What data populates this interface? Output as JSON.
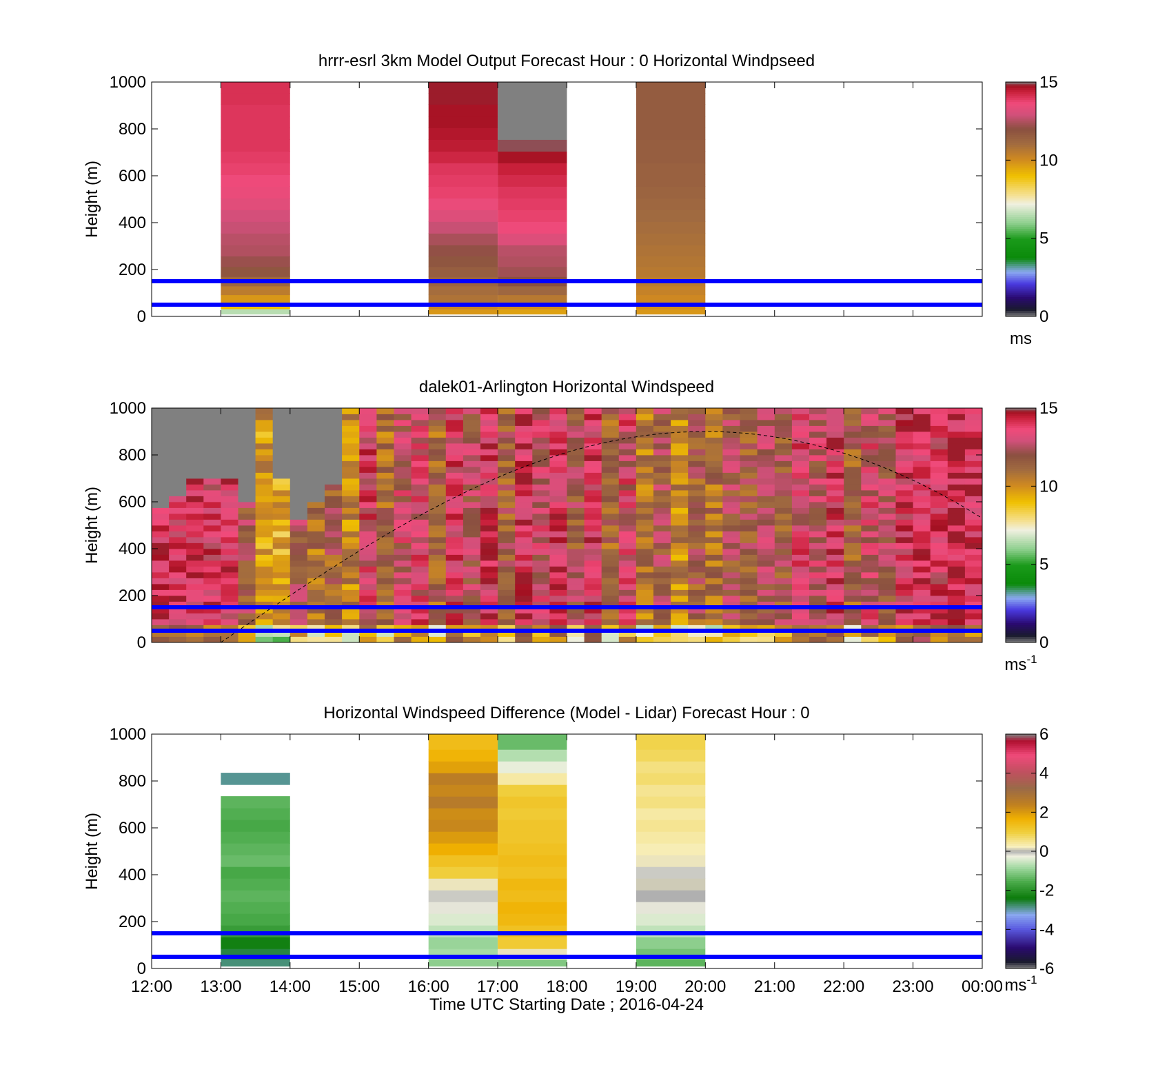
{
  "colors": {
    "line_blue": "#0000ff",
    "missing_gray": "#808080",
    "speed_cmap": [
      [
        0.0,
        "#808080"
      ],
      [
        0.03,
        "#1a1a2e"
      ],
      [
        0.08,
        "#2a0a70"
      ],
      [
        0.14,
        "#4a3ae0"
      ],
      [
        0.19,
        "#8aa8f0"
      ],
      [
        0.25,
        "#0a8a0a"
      ],
      [
        0.33,
        "#1a9a1a"
      ],
      [
        0.4,
        "#90d090"
      ],
      [
        0.48,
        "#f0f0e0"
      ],
      [
        0.52,
        "#f5e090"
      ],
      [
        0.6,
        "#f0c000"
      ],
      [
        0.67,
        "#d08a20"
      ],
      [
        0.74,
        "#a06a40"
      ],
      [
        0.8,
        "#8a5040"
      ],
      [
        0.86,
        "#d0507a"
      ],
      [
        0.91,
        "#f04a7a"
      ],
      [
        0.96,
        "#c8203a"
      ],
      [
        0.985,
        "#a01020"
      ],
      [
        1.0,
        "#808080"
      ]
    ],
    "diff_cmap": [
      [
        0.0,
        "#808080"
      ],
      [
        0.03,
        "#1a1a2e"
      ],
      [
        0.09,
        "#2a0a70"
      ],
      [
        0.17,
        "#5a5ae0"
      ],
      [
        0.23,
        "#8aa8f0"
      ],
      [
        0.3,
        "#0a7a0a"
      ],
      [
        0.37,
        "#4aaa4a"
      ],
      [
        0.43,
        "#a0d8a0"
      ],
      [
        0.48,
        "#f0f0e0"
      ],
      [
        0.5,
        "#b0b0b0"
      ],
      [
        0.52,
        "#f8f0c0"
      ],
      [
        0.58,
        "#f0d040"
      ],
      [
        0.64,
        "#f0b000"
      ],
      [
        0.7,
        "#c08020"
      ],
      [
        0.77,
        "#9a6a48"
      ],
      [
        0.84,
        "#c05060"
      ],
      [
        0.91,
        "#f04a7a"
      ],
      [
        0.97,
        "#b01030"
      ],
      [
        1.0,
        "#808080"
      ]
    ]
  },
  "chart_data": [
    {
      "type": "heatmap",
      "title": "hrrr-esrl 3km Model Output   Forecast Hour : 0 Horizontal Windpseed",
      "xlabel": "",
      "ylabel": "Height (m)",
      "ylim": [
        0,
        1000
      ],
      "yticks": [
        "0",
        "200",
        "400",
        "600",
        "800",
        "1000"
      ],
      "xlim": [
        12,
        24
      ],
      "colorbar": {
        "min": 0,
        "max": 15,
        "ticks": [
          "0",
          "5",
          "10",
          "15"
        ],
        "unit": "ms",
        "unit_sup": ""
      },
      "reference_lines_m": [
        150,
        50
      ],
      "data": {
        "hours": [
          13,
          16,
          17,
          19
        ],
        "heights_m": [
          20,
          45,
          75,
          110,
          150,
          190,
          235,
          280,
          330,
          380,
          430,
          480,
          530,
          580,
          630,
          680,
          730,
          780,
          830,
          880,
          930,
          975
        ],
        "values": [
          [
            6.5,
            9.0,
            9.8,
            10.5,
            11.2,
            11.8,
            12.2,
            12.5,
            12.6,
            12.8,
            13.0,
            13.3,
            13.5,
            13.6,
            13.8,
            13.9,
            14.0,
            14.0,
            14.0,
            14.0,
            14.1,
            14.1
          ],
          [
            9.8,
            10.2,
            10.8,
            11.0,
            11.3,
            11.5,
            11.8,
            12.1,
            12.4,
            12.8,
            13.2,
            13.5,
            13.8,
            13.9,
            14.0,
            14.3,
            14.5,
            14.6,
            14.7,
            14.7,
            14.8,
            14.8
          ],
          [
            9.6,
            10.0,
            10.6,
            11.2,
            12.0,
            12.3,
            12.5,
            12.6,
            13.2,
            13.6,
            13.8,
            13.9,
            14.0,
            14.2,
            14.4,
            14.7,
            14.9,
            15.0,
            15.0,
            15.0,
            15.0,
            15.0
          ],
          [
            9.8,
            10.0,
            10.1,
            10.3,
            10.5,
            10.6,
            10.7,
            10.8,
            10.9,
            11.0,
            11.1,
            11.2,
            11.3,
            11.4,
            11.4,
            11.5,
            11.5,
            11.6,
            11.6,
            11.6,
            11.6,
            11.6
          ]
        ]
      }
    },
    {
      "type": "heatmap",
      "title": "dalek01-Arlington  Horizontal Windspeed",
      "xlabel": "",
      "ylabel": "Height (m)",
      "ylim": [
        0,
        1000
      ],
      "yticks": [
        "0",
        "200",
        "400",
        "600",
        "800",
        "1000"
      ],
      "xlim": [
        12,
        24
      ],
      "colorbar": {
        "min": 0,
        "max": 15,
        "ticks": [
          "0",
          "5",
          "10",
          "15"
        ],
        "unit": "ms",
        "unit_sup": "-1"
      },
      "reference_lines_m": [
        150,
        50
      ],
      "curve": {
        "style": "dashed",
        "x_start": 13.0,
        "x_peak": 20.0,
        "peak_m": 900,
        "x_end": 24.0,
        "end_m": 530
      },
      "data": {
        "time_step_h": 0.25,
        "range_gate_m": 25,
        "profiles_1": [
          {
            "start": 12.0,
            "top_m": 560,
            "mean": 14.0
          },
          {
            "start": 12.25,
            "top_m": 620,
            "mean": 13.7
          },
          {
            "start": 12.5,
            "top_m": 700,
            "mean": 14.0
          },
          {
            "start": 12.75,
            "top_m": 700,
            "mean": 13.6
          },
          {
            "start": 13.0,
            "top_m": 690,
            "mean": 13.8
          },
          {
            "start": 13.25,
            "top_m": 580,
            "mean": 12.0
          },
          {
            "start": 13.5,
            "top_m": 1000,
            "mean": 9.8
          },
          {
            "start": 13.75,
            "top_m": 700,
            "mean": 9.4
          },
          {
            "start": 14.0,
            "top_m": 520,
            "mean": 12.2
          },
          {
            "start": 14.25,
            "top_m": 600,
            "mean": 10.8
          },
          {
            "start": 14.5,
            "top_m": 660,
            "mean": 11.5
          },
          {
            "start": 14.75,
            "top_m": 1000,
            "mean": 10.3
          },
          {
            "start": 15.0,
            "top_m": 1000,
            "mean": 13.5
          },
          {
            "start": 15.25,
            "top_m": 1000,
            "mean": 11.0
          },
          {
            "start": 15.5,
            "top_m": 1000,
            "mean": 12.8
          },
          {
            "start": 15.75,
            "top_m": 1000,
            "mean": 13.3
          }
        ],
        "profiles_2": [
          {
            "start": 16.0,
            "top_m": 1000,
            "mean": 11.2
          },
          {
            "start": 16.25,
            "top_m": 1000,
            "mean": 13.4
          },
          {
            "start": 16.5,
            "top_m": 1000,
            "mean": 12.3
          },
          {
            "start": 16.75,
            "top_m": 1000,
            "mean": 13.9
          },
          {
            "start": 17.0,
            "top_m": 1000,
            "mean": 11.6
          },
          {
            "start": 17.25,
            "top_m": 1000,
            "mean": 14.3
          },
          {
            "start": 17.5,
            "top_m": 1000,
            "mean": 12.8
          },
          {
            "start": 17.75,
            "top_m": 1000,
            "mean": 14.0
          },
          {
            "start": 18.0,
            "top_m": 1000,
            "mean": 11.8
          },
          {
            "start": 18.25,
            "top_m": 1000,
            "mean": 13.8
          },
          {
            "start": 18.5,
            "top_m": 1000,
            "mean": 11.2
          },
          {
            "start": 18.75,
            "top_m": 1000,
            "mean": 13.2
          },
          {
            "start": 19.0,
            "top_m": 1000,
            "mean": 10.6
          },
          {
            "start": 19.25,
            "top_m": 1000,
            "mean": 12.0
          },
          {
            "start": 19.5,
            "top_m": 1000,
            "mean": 10.3
          },
          {
            "start": 19.75,
            "top_m": 1000,
            "mean": 11.6
          }
        ],
        "profiles_3": [
          {
            "start": 20.0,
            "top_m": 1000,
            "mean": 11.0
          },
          {
            "start": 20.25,
            "top_m": 1000,
            "mean": 12.0
          },
          {
            "start": 20.5,
            "top_m": 1000,
            "mean": 11.6
          },
          {
            "start": 20.75,
            "top_m": 1000,
            "mean": 12.4
          },
          {
            "start": 21.0,
            "top_m": 1000,
            "mean": 11.8
          },
          {
            "start": 21.25,
            "top_m": 1000,
            "mean": 13.4
          },
          {
            "start": 21.5,
            "top_m": 1000,
            "mean": 12.6
          },
          {
            "start": 21.75,
            "top_m": 1000,
            "mean": 13.9
          },
          {
            "start": 22.0,
            "top_m": 1000,
            "mean": 11.3
          },
          {
            "start": 22.25,
            "top_m": 1000,
            "mean": 13.0
          },
          {
            "start": 22.5,
            "top_m": 1000,
            "mean": 12.2
          },
          {
            "start": 22.75,
            "top_m": 1000,
            "mean": 13.8
          },
          {
            "start": 23.0,
            "top_m": 1000,
            "mean": 14.2
          },
          {
            "start": 23.25,
            "top_m": 1000,
            "mean": 13.6
          },
          {
            "start": 23.5,
            "top_m": 1000,
            "mean": 14.4
          },
          {
            "start": 23.75,
            "top_m": 1000,
            "mean": 14.0
          }
        ]
      }
    },
    {
      "type": "heatmap",
      "title": "Horizontal Windspeed Difference (Model - Lidar) Forecast Hour : 0",
      "xlabel": "Time UTC  Starting Date ; 2016-04-24",
      "ylabel": "Height (m)",
      "ylim": [
        0,
        1000
      ],
      "yticks": [
        "0",
        "200",
        "400",
        "600",
        "800",
        "1000"
      ],
      "xlim": [
        12,
        24
      ],
      "xticks": [
        "12:00",
        "13:00",
        "14:00",
        "15:00",
        "16:00",
        "17:00",
        "18:00",
        "19:00",
        "20:00",
        "21:00",
        "22:00",
        "23:00",
        "00:00"
      ],
      "colorbar": {
        "min": -6,
        "max": 6,
        "ticks": [
          "-6",
          "-4",
          "-2",
          "0",
          "2",
          "4",
          "6"
        ],
        "unit": "ms",
        "unit_sup": "-1"
      },
      "reference_lines_m": [
        150,
        50
      ],
      "data": {
        "hours": [
          13,
          16,
          17,
          19
        ],
        "heights_m": [
          20,
          60,
          110,
          160,
          210,
          260,
          310,
          360,
          410,
          460,
          510,
          560,
          610,
          660,
          710,
          760,
          810,
          860,
          910,
          960
        ],
        "values": [
          [
            -2.8,
            -2.6,
            -2.3,
            -1.8,
            -1.6,
            -1.5,
            -1.4,
            -1.5,
            -1.6,
            -1.3,
            -1.4,
            -1.5,
            -1.6,
            -1.5,
            -1.4,
            null,
            -2.9,
            null,
            null,
            null
          ],
          [
            -1.0,
            -0.8,
            -0.9,
            -0.6,
            -0.4,
            -0.2,
            -0.1,
            0.2,
            1.0,
            1.3,
            1.7,
            2.0,
            2.3,
            2.2,
            2.6,
            2.3,
            2.5,
            1.9,
            1.6,
            1.4
          ],
          [
            -1.1,
            0.2,
            1.1,
            1.3,
            1.5,
            1.6,
            1.4,
            1.5,
            1.3,
            1.4,
            1.3,
            1.2,
            1.2,
            1.1,
            1.2,
            1.0,
            0.4,
            -0.3,
            -0.7,
            -1.3
          ],
          [
            -1.4,
            -1.2,
            -1.0,
            -0.6,
            -0.4,
            -0.2,
            0.0,
            0.1,
            -0.1,
            0.2,
            0.3,
            0.4,
            0.5,
            0.4,
            0.6,
            0.5,
            0.7,
            0.6,
            0.8,
            0.9
          ]
        ]
      }
    }
  ]
}
